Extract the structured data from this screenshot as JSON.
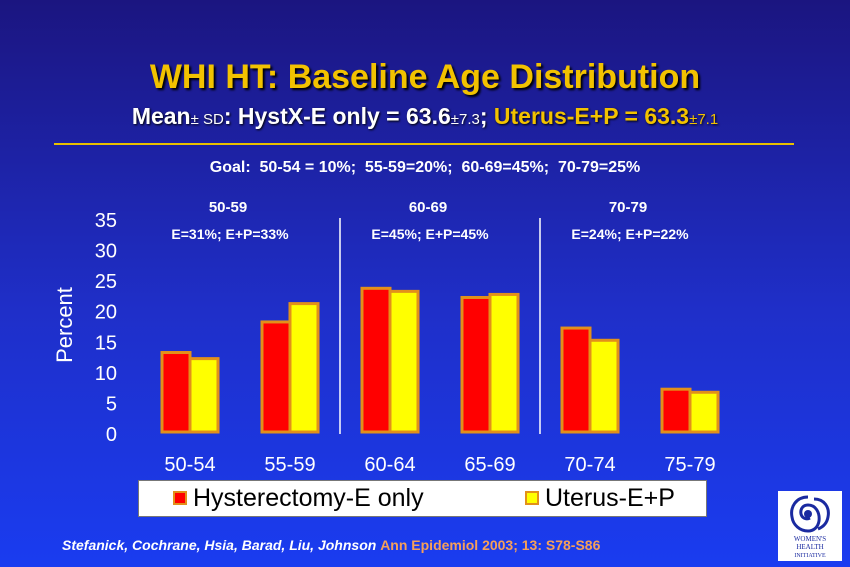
{
  "title": "WHI HT:  Baseline Age Distribution",
  "subtitle": {
    "mean": "Mean",
    "pm_sd": "± SD",
    "hyst_prefix": ": HystX-E only = 63.6",
    "hyst_sd": "±7.3",
    "sep": ";",
    "uterus": " Uterus-E+P = 63.3",
    "uterus_sd": "±7.1"
  },
  "goal": "Goal:  50-54 = 10%;  55-59=20%;  60-69=45%;  70-79=25%",
  "citation": {
    "authors": "Stefanick, Cochrane, Hsia, Barad, Liu, Johnson ",
    "journal": "Ann Epidemiol 2003; 13: S78-S86"
  },
  "logo_text": "WOMEN'S HEALTH INITIATIVE",
  "colors": {
    "hyst": "#ff0000",
    "uterus": "#ffff00",
    "bar_border": "#e2901a",
    "title": "#f2c200",
    "background": "#1f2fc9"
  },
  "chart_data": {
    "type": "bar",
    "categories": [
      "50-54",
      "55-59",
      "60-64",
      "65-69",
      "70-74",
      "75-79"
    ],
    "series": [
      {
        "name": "Hysterectomy-E only",
        "values": [
          13,
          18,
          23.5,
          22,
          17,
          7
        ]
      },
      {
        "name": "Uterus-E+P",
        "values": [
          12,
          21,
          23,
          22.5,
          15,
          6.5
        ]
      }
    ],
    "ylabel": "Percent",
    "ylim": [
      0,
      35
    ],
    "yticks": [
      0,
      5,
      10,
      15,
      20,
      25,
      30,
      35
    ],
    "grid": false,
    "legend": "bottom",
    "groups": [
      {
        "label": "50-59",
        "note": "E=31%; E+P=33%"
      },
      {
        "label": "60-69",
        "note": "E=45%; E+P=45%"
      },
      {
        "label": "70-79",
        "note": "E=24%; E+P=22%"
      }
    ]
  }
}
